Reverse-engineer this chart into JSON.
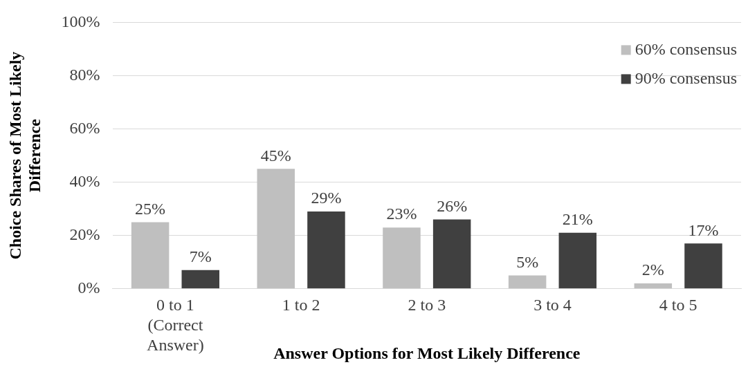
{
  "chart_data": {
    "type": "bar",
    "xlabel": "Answer Options for Most Likely Difference",
    "ylabel": "Choice Shares of Most Likely Difference",
    "categories": [
      "0 to 1 (Correct Answer)",
      "1 to 2",
      "2 to 3",
      "3 to 4",
      "4 to 5"
    ],
    "series": [
      {
        "name": "60% consensus",
        "color": "#bfbfbf",
        "values": [
          25,
          45,
          23,
          5,
          2
        ],
        "value_labels": [
          "25%",
          "45%",
          "23%",
          "5%",
          "2%"
        ]
      },
      {
        "name": "90% consensus",
        "color": "#404040",
        "values": [
          7,
          29,
          26,
          21,
          17
        ],
        "value_labels": [
          "7%",
          "29%",
          "26%",
          "21%",
          "17%"
        ]
      }
    ],
    "ylim": [
      0,
      100
    ],
    "yticks": [
      {
        "value": 0,
        "label": "0%"
      },
      {
        "value": 20,
        "label": "20%"
      },
      {
        "value": 40,
        "label": "40%"
      },
      {
        "value": 60,
        "label": "60%"
      },
      {
        "value": 80,
        "label": "80%"
      },
      {
        "value": 100,
        "label": "100%"
      }
    ],
    "grid": "y",
    "legend": "top right"
  }
}
